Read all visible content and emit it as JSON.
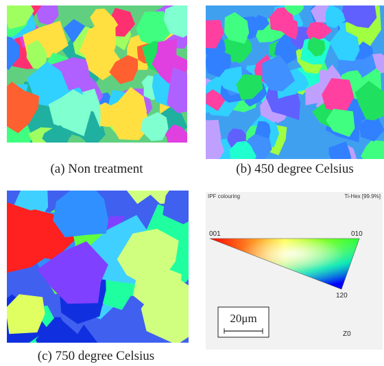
{
  "panels": [
    {
      "label": "(a) Non treatment"
    },
    {
      "label": "(b) 450 degree Celsius"
    },
    {
      "label": "(c) 750 degree Celsius"
    }
  ],
  "legend": {
    "title": "IPF colouring",
    "phase": "Ti-Hex [99.9%]",
    "corners": [
      "001",
      "010",
      "120"
    ],
    "scale_bar": "20μm",
    "axis": "Z0"
  }
}
